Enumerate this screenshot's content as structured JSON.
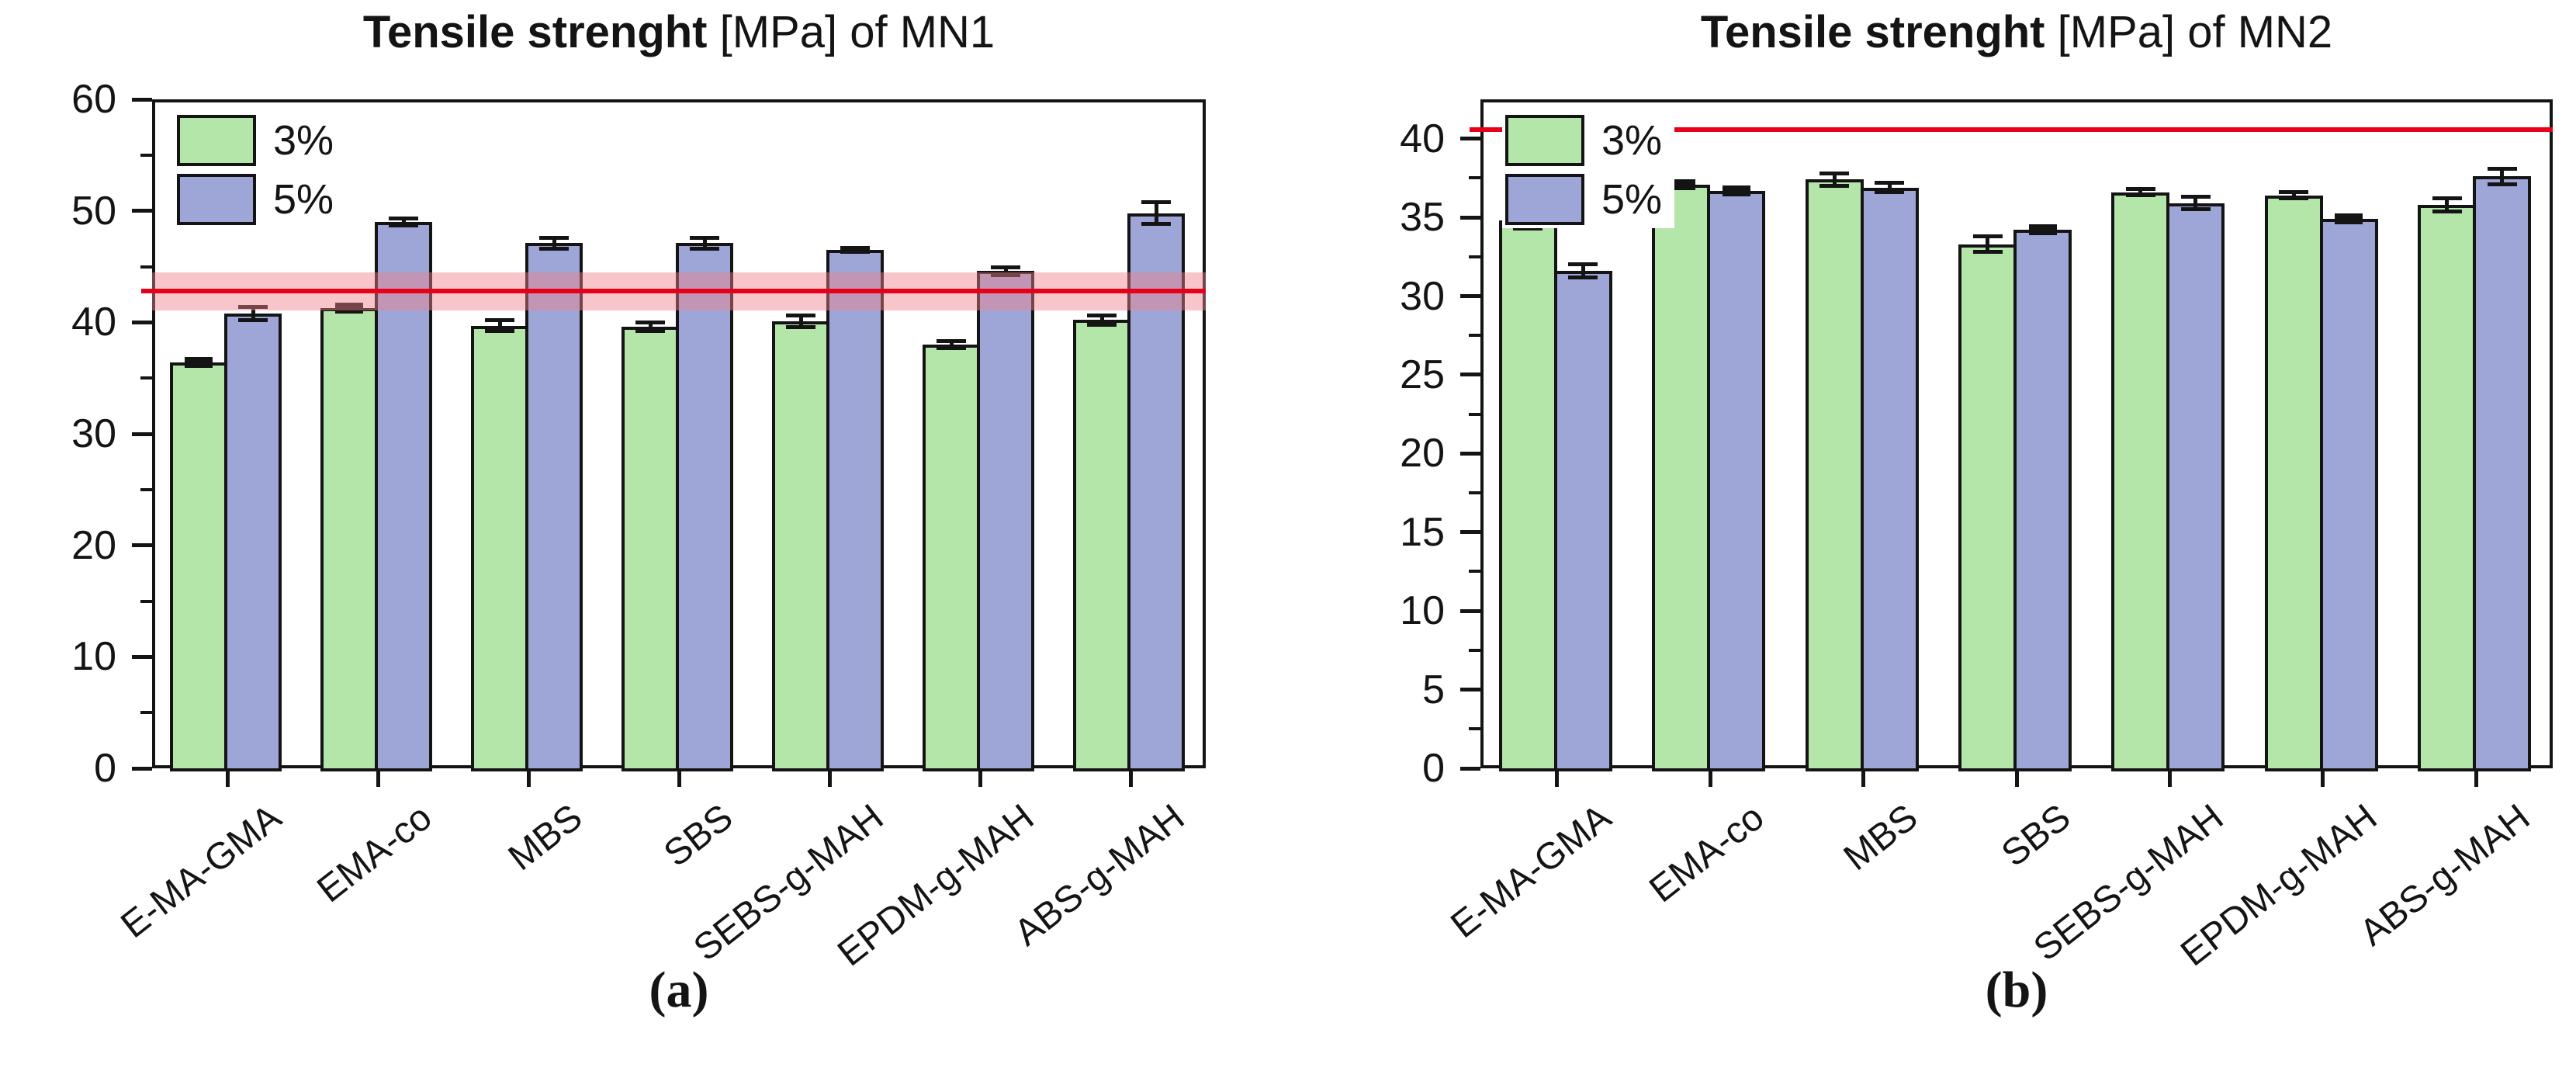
{
  "figure": {
    "panels": [
      {
        "caption": "(a)",
        "title_bold": "Tensile strenght",
        "title_rest": " [MPa] of MN1"
      },
      {
        "caption": "(b)",
        "title_bold": "Tensile strenght",
        "title_rest": " [MPa] of MN2"
      }
    ]
  },
  "colors": {
    "series_3pct": "#b5e6a9",
    "series_5pct": "#9ea6d8",
    "bar_border": "#141414",
    "axis": "#141414",
    "ref_line": "#e8001a",
    "ref_band": "rgba(240,128,138,0.45)"
  },
  "chart_data": [
    {
      "type": "bar",
      "title": "Tensile strenght [MPa] of MN1",
      "xlabel": "",
      "ylabel": "",
      "categories": [
        "E-MA-GMA",
        "EMA-co",
        "MBS",
        "SBS",
        "SEBS-g-MAH",
        "EPDM-g-MAH",
        "ABS-g-MAH"
      ],
      "series": [
        {
          "name": "3%",
          "values": [
            36.4,
            41.3,
            39.7,
            39.6,
            40.1,
            38.0,
            40.2
          ],
          "errors": [
            0.15,
            0.15,
            0.5,
            0.4,
            0.5,
            0.3,
            0.4
          ]
        },
        {
          "name": "5%",
          "values": [
            40.8,
            49.0,
            47.1,
            47.1,
            46.5,
            44.6,
            49.8
          ],
          "errors": [
            0.6,
            0.3,
            0.5,
            0.5,
            0.2,
            0.35,
            1.0
          ]
        }
      ],
      "ylim": [
        0,
        60
      ],
      "ytick_step": 10,
      "minor_step": 5,
      "ref_line": 42.8,
      "ref_band": [
        41.1,
        44.5
      ],
      "legend_position": "top-left",
      "grid": false
    },
    {
      "type": "bar",
      "title": "Tensile strenght [MPa] of MN2",
      "xlabel": "",
      "ylabel": "",
      "categories": [
        "E-MA-GMA",
        "EMA-co",
        "MBS",
        "SBS",
        "SEBS-g-MAH",
        "EPDM-g-MAH",
        "ABS-g-MAH"
      ],
      "series": [
        {
          "name": "3%",
          "values": [
            34.8,
            37.1,
            37.4,
            33.3,
            36.6,
            36.4,
            35.8
          ],
          "errors": [
            0.5,
            0.15,
            0.4,
            0.5,
            0.2,
            0.2,
            0.4
          ]
        },
        {
          "name": "5%",
          "values": [
            31.6,
            36.7,
            36.9,
            34.2,
            35.9,
            34.9,
            37.6
          ],
          "errors": [
            0.4,
            0.15,
            0.3,
            0.1,
            0.4,
            0.1,
            0.5
          ]
        }
      ],
      "ylim": [
        0,
        42.5
      ],
      "ytick_step": 5,
      "minor_step": 2.5,
      "ytick_max_label": 40,
      "ref_line": 40.6,
      "ref_band": null,
      "legend_position": "top-left",
      "grid": false
    }
  ]
}
